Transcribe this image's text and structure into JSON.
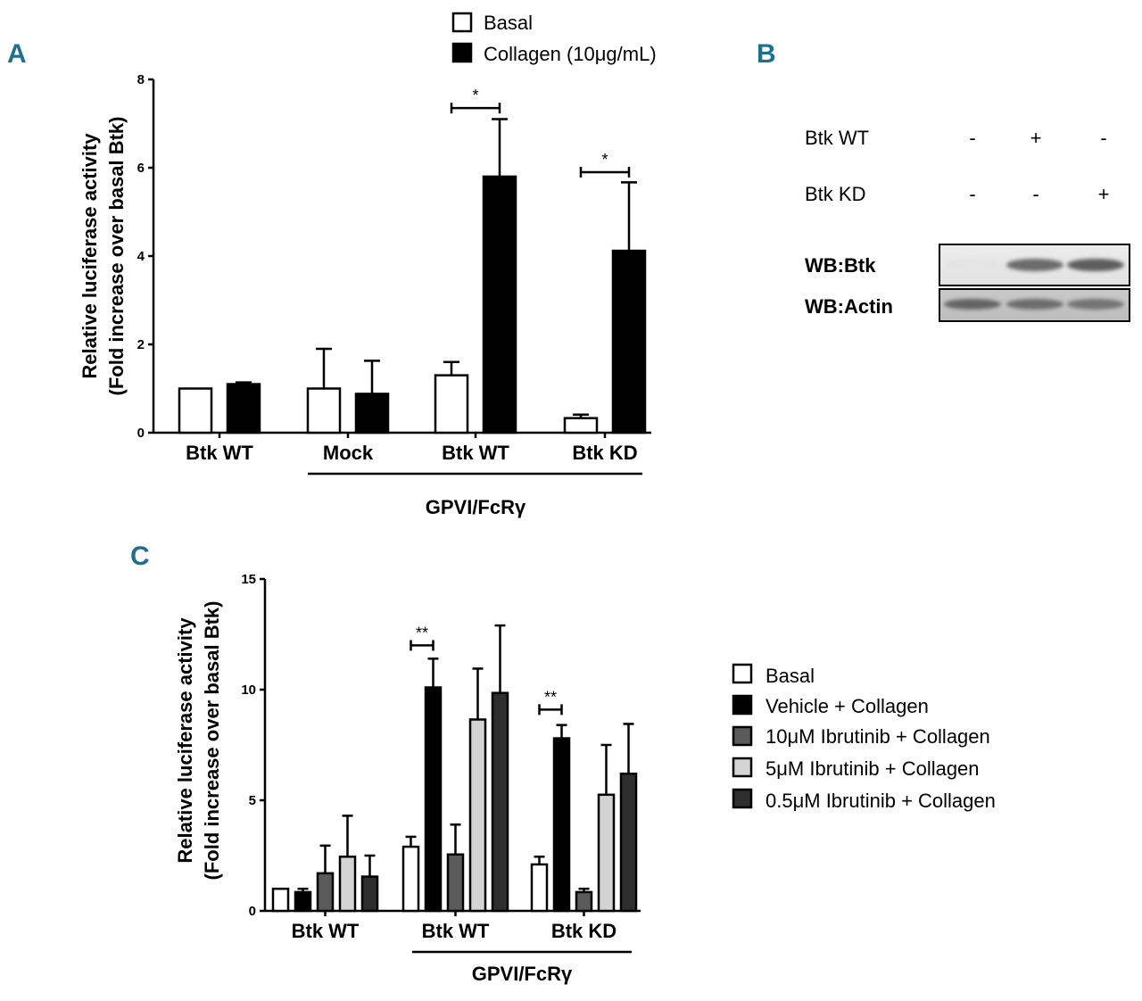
{
  "colors": {
    "panel_label": "#1f6f8f",
    "series": [
      "#ffffff",
      "#000000",
      "#5a5a5a",
      "#d4d4d4",
      "#2e2e2e"
    ]
  },
  "chart_data": [
    {
      "panel": "A",
      "type": "bar",
      "ylabel_line1": "Relative luciferase activity",
      "ylabel_line2": "(Fold increase over basal Btk)",
      "ylim": [
        0,
        8
      ],
      "yticks": [
        "0",
        "2",
        "4",
        "6",
        "8"
      ],
      "categories": [
        "Btk WT",
        "Mock",
        "Btk WT",
        "Btk KD"
      ],
      "group_label": "GPVI/FcRγ",
      "series": [
        {
          "name": "Basal",
          "values": [
            1.0,
            1.0,
            1.3,
            0.33
          ],
          "errors": [
            0.0,
            0.9,
            0.3,
            0.08
          ]
        },
        {
          "name": "Collagen (10μg/mL)",
          "values": [
            1.1,
            0.88,
            5.8,
            4.12
          ],
          "errors": [
            0.04,
            0.75,
            1.3,
            1.55
          ]
        }
      ],
      "significance": [
        {
          "group": 2,
          "label": "*",
          "y": 7.35
        },
        {
          "group": 3,
          "label": "*",
          "y": 5.9
        }
      ],
      "legend": [
        "Basal",
        "Collagen (10μg/mL)"
      ]
    },
    {
      "panel": "C",
      "type": "bar",
      "ylabel_line1": "Relative luciferase activity",
      "ylabel_line2": "(Fold increase over basal Btk)",
      "ylim": [
        0,
        15
      ],
      "yticks": [
        "0",
        "5",
        "10",
        "15"
      ],
      "categories": [
        "Btk WT",
        "Btk WT",
        "Btk KD"
      ],
      "group_label": "GPVI/FcRγ",
      "series": [
        {
          "name": "Basal",
          "values": [
            1.0,
            2.9,
            2.1
          ],
          "errors": [
            0.0,
            0.45,
            0.35
          ]
        },
        {
          "name": "Vehicle + Collagen",
          "values": [
            0.85,
            10.1,
            7.8
          ],
          "errors": [
            0.15,
            1.3,
            0.6
          ]
        },
        {
          "name": "10μM Ibrutinib + Collagen",
          "values": [
            1.7,
            2.55,
            0.85
          ],
          "errors": [
            1.25,
            1.35,
            0.15
          ]
        },
        {
          "name": "5μM Ibrutinib + Collagen",
          "values": [
            2.45,
            8.65,
            5.25
          ],
          "errors": [
            1.85,
            2.3,
            2.25
          ]
        },
        {
          "name": "0.5μM Ibrutinib + Collagen",
          "values": [
            1.55,
            9.85,
            6.2
          ],
          "errors": [
            0.95,
            3.05,
            2.25
          ]
        }
      ],
      "significance": [
        {
          "group": 1,
          "label": "**",
          "y": 12.0
        },
        {
          "group": 2,
          "label": "**",
          "y": 9.1
        }
      ],
      "legend": [
        "Basal",
        "Vehicle + Collagen",
        "10μM Ibrutinib + Collagen",
        "5μM Ibrutinib + Collagen",
        "0.5μM Ibrutinib + Collagen"
      ]
    }
  ],
  "panel_labels": {
    "a": "A",
    "b": "B",
    "c": "C"
  },
  "western_blot": {
    "rows": [
      {
        "label": "Btk WT",
        "marks": [
          "-",
          "+",
          "-"
        ]
      },
      {
        "label": "Btk KD",
        "marks": [
          "-",
          "-",
          "+"
        ]
      }
    ],
    "blots": [
      {
        "label": "WB:Btk",
        "band_intensity": [
          0.05,
          0.85,
          0.95
        ]
      },
      {
        "label": "WB:Actin",
        "band_intensity": [
          0.9,
          0.85,
          0.8
        ]
      }
    ]
  }
}
